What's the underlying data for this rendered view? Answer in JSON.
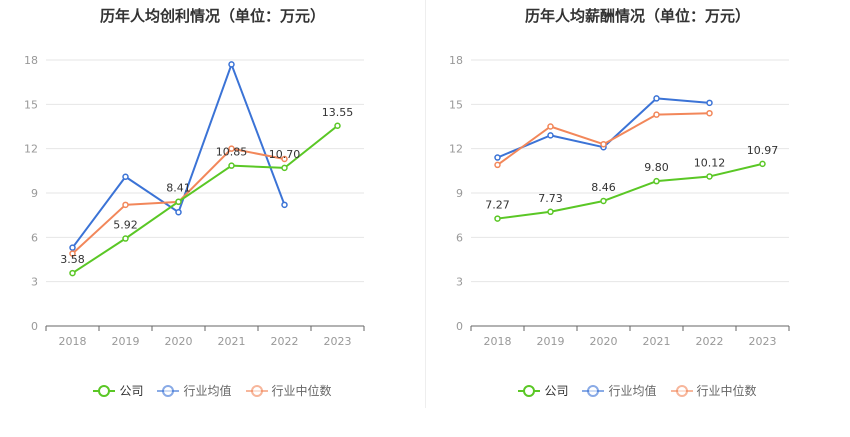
{
  "colors": {
    "company": "#5ac725",
    "industry_avg": "#3b73d6",
    "industry_median": "#f2875a",
    "axis": "#666666",
    "grid": "#e6e6e6",
    "tick_text": "#999999"
  },
  "legend": {
    "company": "公司",
    "industry_avg": "行业均值",
    "industry_median": "行业中位数"
  },
  "chart_data": [
    {
      "type": "line",
      "title": "历年人均创利情况（单位：万元）",
      "xlabel": "",
      "ylabel": "",
      "ylim": [
        0,
        18
      ],
      "yticks": [
        "0",
        "3",
        "6",
        "9",
        "12",
        "15",
        "18"
      ],
      "categories": [
        "2018",
        "2019",
        "2020",
        "2021",
        "2022",
        "2023"
      ],
      "grid": true,
      "legend_position": "bottom",
      "series": [
        {
          "name": "公司",
          "key": "company",
          "values": [
            3.58,
            5.92,
            8.41,
            10.85,
            10.7,
            13.55
          ],
          "labels": [
            "3.58",
            "5.92",
            "8.41",
            "10.85",
            "10.70",
            "13.55"
          ]
        },
        {
          "name": "行业均值",
          "key": "industry_avg",
          "values": [
            5.3,
            10.1,
            7.7,
            17.7,
            8.2,
            null
          ]
        },
        {
          "name": "行业中位数",
          "key": "industry_median",
          "values": [
            4.9,
            8.2,
            8.4,
            12.0,
            11.3,
            null
          ]
        }
      ]
    },
    {
      "type": "line",
      "title": "历年人均薪酬情况（单位：万元）",
      "xlabel": "",
      "ylabel": "",
      "ylim": [
        0,
        18
      ],
      "yticks": [
        "0",
        "3",
        "6",
        "9",
        "12",
        "15",
        "18"
      ],
      "categories": [
        "2018",
        "2019",
        "2020",
        "2021",
        "2022",
        "2023"
      ],
      "grid": true,
      "legend_position": "bottom",
      "series": [
        {
          "name": "公司",
          "key": "company",
          "values": [
            7.27,
            7.73,
            8.46,
            9.8,
            10.12,
            10.97
          ],
          "labels": [
            "7.27",
            "7.73",
            "8.46",
            "9.80",
            "10.12",
            "10.97"
          ]
        },
        {
          "name": "行业均值",
          "key": "industry_avg",
          "values": [
            11.4,
            12.9,
            12.1,
            15.4,
            15.1,
            null
          ]
        },
        {
          "name": "行业中位数",
          "key": "industry_median",
          "values": [
            10.9,
            13.5,
            12.3,
            14.3,
            14.4,
            null
          ]
        }
      ]
    }
  ]
}
